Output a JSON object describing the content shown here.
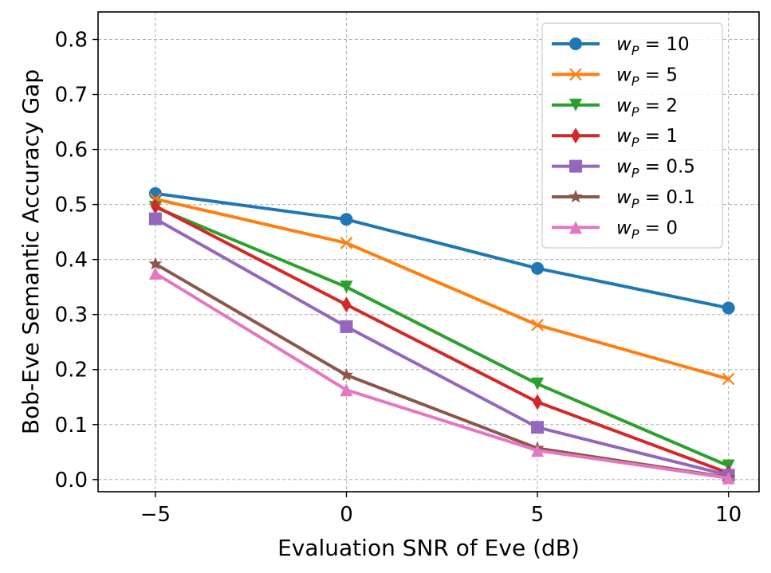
{
  "chart_data": {
    "type": "line",
    "title": "",
    "xlabel": "Evaluation SNR of Eve (dB)",
    "ylabel": "Bob-Eve Semantic Accuracy Gap",
    "x": [
      -5,
      0,
      5,
      10
    ],
    "x_tick_labels": [
      "−5",
      "0",
      "5",
      "10"
    ],
    "y_ticks": [
      0.0,
      0.1,
      0.2,
      0.3,
      0.4,
      0.5,
      0.6,
      0.7,
      0.8
    ],
    "y_tick_labels": [
      "0.0",
      "0.1",
      "0.2",
      "0.3",
      "0.4",
      "0.5",
      "0.6",
      "0.7",
      "0.8"
    ],
    "xlim": [
      -6.5,
      10.8
    ],
    "ylim": [
      -0.022,
      0.85
    ],
    "grid": true,
    "legend_position": "top-right",
    "series": [
      {
        "name": "w_P = 10",
        "legend_var": "w",
        "legend_sub": "P",
        "legend_value": "10",
        "color": "#1f77b4",
        "marker": "circle",
        "values": [
          0.52,
          0.473,
          0.384,
          0.312
        ]
      },
      {
        "name": "w_P = 5",
        "legend_var": "w",
        "legend_sub": "P",
        "legend_value": "5",
        "color": "#ff7f0e",
        "marker": "x",
        "values": [
          0.51,
          0.43,
          0.281,
          0.183
        ]
      },
      {
        "name": "w_P = 2",
        "legend_var": "w",
        "legend_sub": "P",
        "legend_value": "2",
        "color": "#2ca02c",
        "marker": "triangle-down",
        "values": [
          0.495,
          0.35,
          0.174,
          0.025
        ]
      },
      {
        "name": "w_P = 1",
        "legend_var": "w",
        "legend_sub": "P",
        "legend_value": "1",
        "color": "#d62728",
        "marker": "thin-diamond",
        "values": [
          0.497,
          0.318,
          0.141,
          0.012
        ]
      },
      {
        "name": "w_P = 0.5",
        "legend_var": "w",
        "legend_sub": "P",
        "legend_value": "0.5",
        "color": "#9467bd",
        "marker": "square",
        "values": [
          0.474,
          0.278,
          0.095,
          0.008
        ]
      },
      {
        "name": "w_P = 0.1",
        "legend_var": "w",
        "legend_sub": "P",
        "legend_value": "0.1",
        "color": "#8c564b",
        "marker": "star",
        "values": [
          0.392,
          0.19,
          0.057,
          0.004
        ]
      },
      {
        "name": "w_P = 0",
        "legend_var": "w",
        "legend_sub": "P",
        "legend_value": "0",
        "color": "#e377c2",
        "marker": "triangle-up",
        "values": [
          0.375,
          0.163,
          0.053,
          0.003
        ]
      }
    ]
  }
}
